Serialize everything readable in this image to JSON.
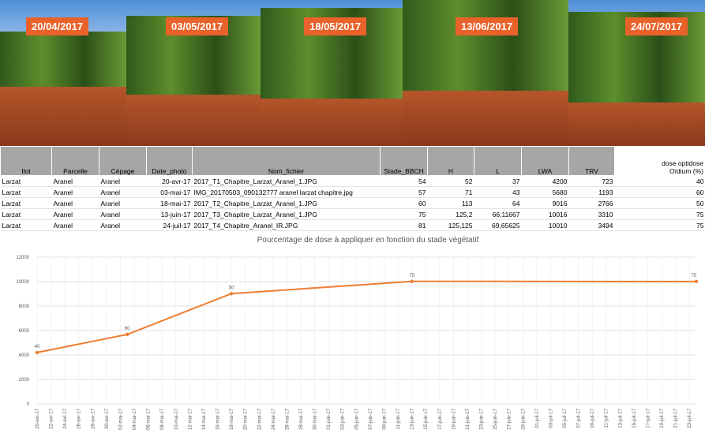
{
  "photos": [
    "20/04/2017",
    "03/05/2017",
    "18/05/2017",
    "13/06/2017",
    "24/07/2017"
  ],
  "table": {
    "header": [
      "Ilot",
      "Parcelle",
      "Cépage",
      "Date_photo",
      "Nom_fichier",
      "Stade_BBCH",
      "H",
      "L",
      "LWA",
      "TRV",
      "dose optidose Oïdium (%)"
    ],
    "rows": [
      [
        "Larzat",
        "Aranel",
        "Aranel",
        "20-avr-17",
        "2017_T1_Chapitre_Larzat_Aranel_1.JPG",
        "54",
        "52",
        "37",
        "4200",
        "723",
        "40"
      ],
      [
        "Larzat",
        "Aranel",
        "Aranel",
        "03-mai-17",
        "IMG_20170503_090132777 aranel larzat chapitre.jpg",
        "57",
        "71",
        "43",
        "5680",
        "1193",
        "60"
      ],
      [
        "Larzat",
        "Aranel",
        "Aranel",
        "18-mai-17",
        "2017_T2_Chapitre_Larzat_Aranel_1.JPG",
        "60",
        "113",
        "64",
        "9016",
        "2766",
        "50"
      ],
      [
        "Larzat",
        "Aranel",
        "Aranel",
        "13-juin-17",
        "2017_T3_Chapitre_Larzat_Aranel_1.JPG",
        "75",
        "125,2",
        "66,11667",
        "10016",
        "3310",
        "75"
      ],
      [
        "Larzat",
        "Aranel",
        "Aranel",
        "24-juil-17",
        "2017_T4_Chapitre_Aranel_IR.JPG",
        "81",
        "125,125",
        "69,65625",
        "10010",
        "3494",
        "75"
      ]
    ]
  },
  "chart_data": {
    "type": "line",
    "title": "Pourcentage de dose à appliquer en fonction du stade végétatif",
    "x": [
      "2017-04-20",
      "2017-05-03",
      "2017-05-18",
      "2017-06-13",
      "2017-07-24"
    ],
    "series": [
      {
        "color": "#ed7d31",
        "values": [
          4200,
          5680,
          9016,
          10016,
          10010
        ],
        "point_labels": [
          40,
          60,
          50,
          75,
          75
        ]
      }
    ],
    "xlim": [
      "2017-04-20",
      "2017-07-24"
    ],
    "xticks": [
      {
        "value": "2017-04-20",
        "label": "20-avr-17"
      },
      {
        "value": "2017-04-22",
        "label": "22-avr-17"
      },
      {
        "value": "2017-04-24",
        "label": "24-avr-17"
      },
      {
        "value": "2017-04-26",
        "label": "26-avr-17"
      },
      {
        "value": "2017-04-28",
        "label": "28-avr-17"
      },
      {
        "value": "2017-04-30",
        "label": "30-avr-17"
      },
      {
        "value": "2017-05-02",
        "label": "02-mai-17"
      },
      {
        "value": "2017-05-04",
        "label": "04-mai-17"
      },
      {
        "value": "2017-05-06",
        "label": "06-mai-17"
      },
      {
        "value": "2017-05-08",
        "label": "08-mai-17"
      },
      {
        "value": "2017-05-10",
        "label": "10-mai-17"
      },
      {
        "value": "2017-05-12",
        "label": "12-mai-17"
      },
      {
        "value": "2017-05-14",
        "label": "14-mai-17"
      },
      {
        "value": "2017-05-16",
        "label": "16-mai-17"
      },
      {
        "value": "2017-05-18",
        "label": "18-mai-17"
      },
      {
        "value": "2017-05-20",
        "label": "20-mai-17"
      },
      {
        "value": "2017-05-22",
        "label": "22-mai-17"
      },
      {
        "value": "2017-05-24",
        "label": "24-mai-17"
      },
      {
        "value": "2017-05-26",
        "label": "26-mai-17"
      },
      {
        "value": "2017-05-28",
        "label": "28-mai-17"
      },
      {
        "value": "2017-05-30",
        "label": "30-mai-17"
      },
      {
        "value": "2017-06-01",
        "label": "01-juin-17"
      },
      {
        "value": "2017-06-03",
        "label": "03-juin-17"
      },
      {
        "value": "2017-06-05",
        "label": "05-juin-17"
      },
      {
        "value": "2017-06-07",
        "label": "07-juin-17"
      },
      {
        "value": "2017-06-09",
        "label": "09-juin-17"
      },
      {
        "value": "2017-06-11",
        "label": "11-juin-17"
      },
      {
        "value": "2017-06-13",
        "label": "13-juin-17"
      },
      {
        "value": "2017-06-15",
        "label": "15-juin-17"
      },
      {
        "value": "2017-06-17",
        "label": "17-juin-17"
      },
      {
        "value": "2017-06-19",
        "label": "19-juin-17"
      },
      {
        "value": "2017-06-21",
        "label": "21-juin-17"
      },
      {
        "value": "2017-06-23",
        "label": "23-juin-17"
      },
      {
        "value": "2017-06-25",
        "label": "25-juin-17"
      },
      {
        "value": "2017-06-27",
        "label": "27-juin-17"
      },
      {
        "value": "2017-06-29",
        "label": "29-juin-17"
      },
      {
        "value": "2017-07-01",
        "label": "01-juil-17"
      },
      {
        "value": "2017-07-03",
        "label": "03-juil-17"
      },
      {
        "value": "2017-07-05",
        "label": "05-juil-17"
      },
      {
        "value": "2017-07-07",
        "label": "07-juil-17"
      },
      {
        "value": "2017-07-09",
        "label": "09-juil-17"
      },
      {
        "value": "2017-07-11",
        "label": "11-juil-17"
      },
      {
        "value": "2017-07-13",
        "label": "13-juil-17"
      },
      {
        "value": "2017-07-15",
        "label": "15-juil-17"
      },
      {
        "value": "2017-07-17",
        "label": "17-juil-17"
      },
      {
        "value": "2017-07-19",
        "label": "19-juil-17"
      },
      {
        "value": "2017-07-21",
        "label": "21-juil-17"
      },
      {
        "value": "2017-07-23",
        "label": "23-juil-17"
      }
    ],
    "ylim": [
      0,
      12000
    ],
    "yticks": [
      0,
      2000,
      4000,
      6000,
      8000,
      10000,
      12000
    ],
    "grid": true
  }
}
